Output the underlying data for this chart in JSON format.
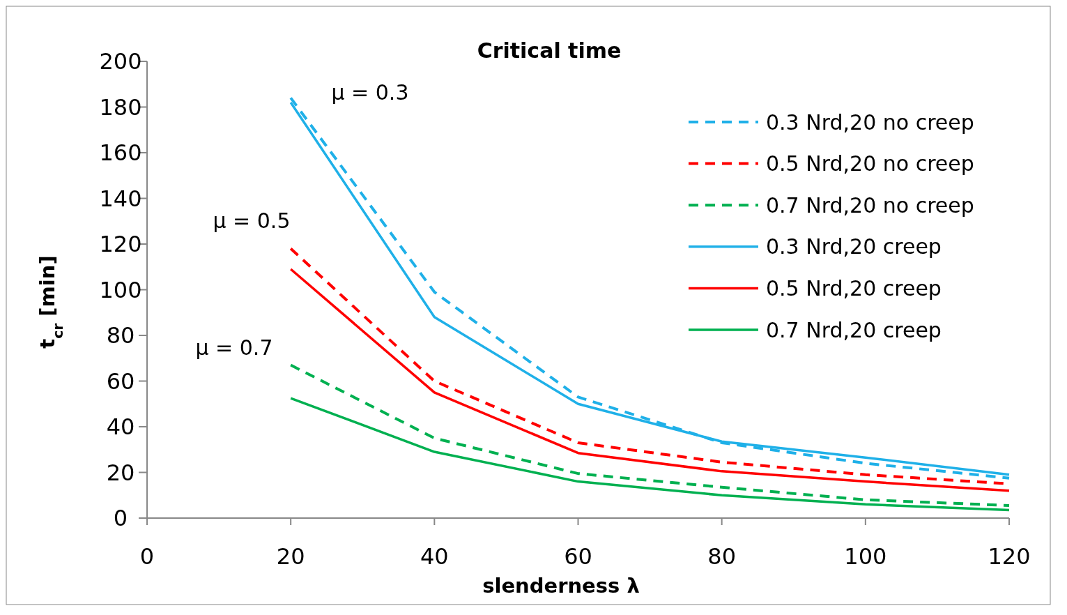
{
  "chart_data": {
    "type": "line",
    "title": "Critical time",
    "xlabel": "slenderness λ",
    "ylabel": "t$_{cr}$ [min]",
    "x": [
      20,
      40,
      60,
      80,
      100,
      120
    ],
    "xlim": [
      0,
      120
    ],
    "xticks": [
      0,
      20,
      40,
      60,
      80,
      100,
      120
    ],
    "ylim": [
      0,
      200
    ],
    "yticks": [
      0,
      20,
      40,
      60,
      80,
      100,
      120,
      140,
      160,
      180,
      200
    ],
    "grid": false,
    "legend": "top right",
    "marker": "none",
    "series": [
      {
        "name": "0.3 Nrd,20 no creep",
        "color": "#1fb0e8",
        "line_style": "dashed",
        "values": [
          184,
          99,
          53,
          33,
          24,
          17.5
        ]
      },
      {
        "name": "0.5 Nrd,20 no creep",
        "color": "#ff0000",
        "line_style": "dashed",
        "values": [
          118,
          60,
          33,
          24.5,
          19,
          15
        ]
      },
      {
        "name": "0.7 Nrd,20 no creep",
        "color": "#00b050",
        "line_style": "dashed",
        "values": [
          67,
          35,
          19.5,
          13.5,
          8,
          5.5
        ]
      },
      {
        "name": "0.3 Nrd,20 creep",
        "color": "#1fb0e8",
        "line_style": "solid",
        "values": [
          182,
          88,
          50,
          33.5,
          26.5,
          19
        ]
      },
      {
        "name": "0.5 Nrd,20 creep",
        "color": "#ff0000",
        "line_style": "solid",
        "values": [
          109,
          55,
          28.5,
          20.5,
          16,
          12
        ]
      },
      {
        "name": "0.7 Nrd,20 creep",
        "color": "#00b050",
        "line_style": "solid",
        "values": [
          52.5,
          29,
          16,
          10,
          6,
          3.5
        ]
      }
    ],
    "annotations": [
      "μ = 0.3",
      "μ = 0.5",
      "μ = 0.7"
    ]
  }
}
